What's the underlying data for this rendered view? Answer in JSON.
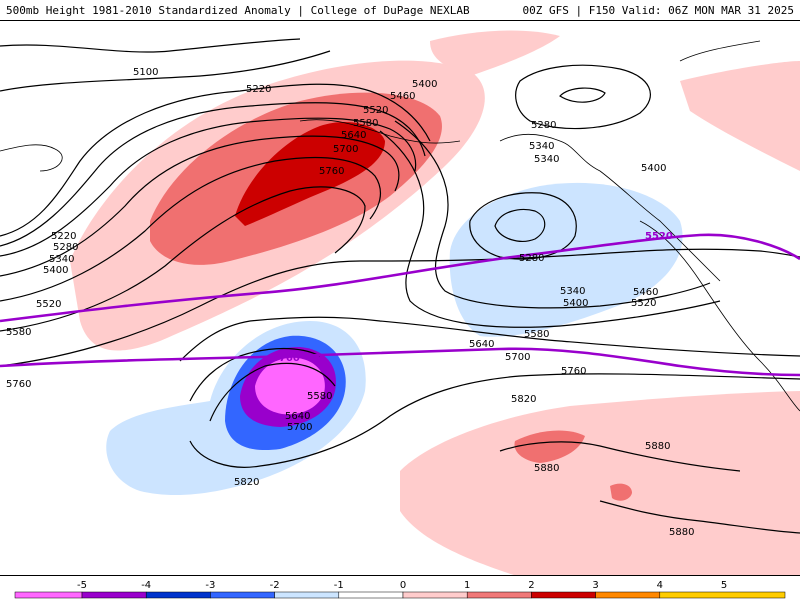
{
  "header": {
    "left": "500mb Height 1981-2010 Standardized Anomaly | College of DuPage NEXLAB",
    "right": "00Z GFS | F150 Valid: 06Z MON MAR 31 2025"
  },
  "contour_labels": [
    "5100",
    "5220",
    "5220",
    "5280",
    "5340",
    "5400",
    "5460",
    "5520",
    "5580",
    "5640",
    "5700",
    "5760",
    "5400",
    "5280",
    "5340",
    "5340",
    "5400",
    "5280",
    "5340",
    "5400",
    "5460",
    "5520",
    "5580",
    "5640",
    "5700",
    "5760",
    "5820",
    "5880",
    "5880",
    "5880",
    "5520",
    "5580",
    "5580",
    "5640",
    "5700",
    "5760",
    "5820",
    "5760",
    "5520"
  ],
  "colorbar": {
    "ticks": [
      "-5",
      "-4",
      "-3",
      "-2",
      "-1",
      "0",
      "1",
      "2",
      "3",
      "4",
      "5"
    ],
    "colors": [
      "#ff66ff",
      "#9900cc",
      "#0033cc",
      "#3366ff",
      "#cce5ff",
      "#ffffff",
      "#ffcccc",
      "#f07878",
      "#cc0000",
      "#ff8800",
      "#ffcc00"
    ]
  },
  "colors": {
    "strong_pos": "#cc0000",
    "mid_pos": "#f07070",
    "light_pos": "#ffcccc",
    "light_neg": "#cce4ff",
    "mid_neg": "#3366ff",
    "strong_neg": "#9900cc",
    "extreme_neg": "#ff66ff",
    "highlight_contour": "#9900cc"
  }
}
